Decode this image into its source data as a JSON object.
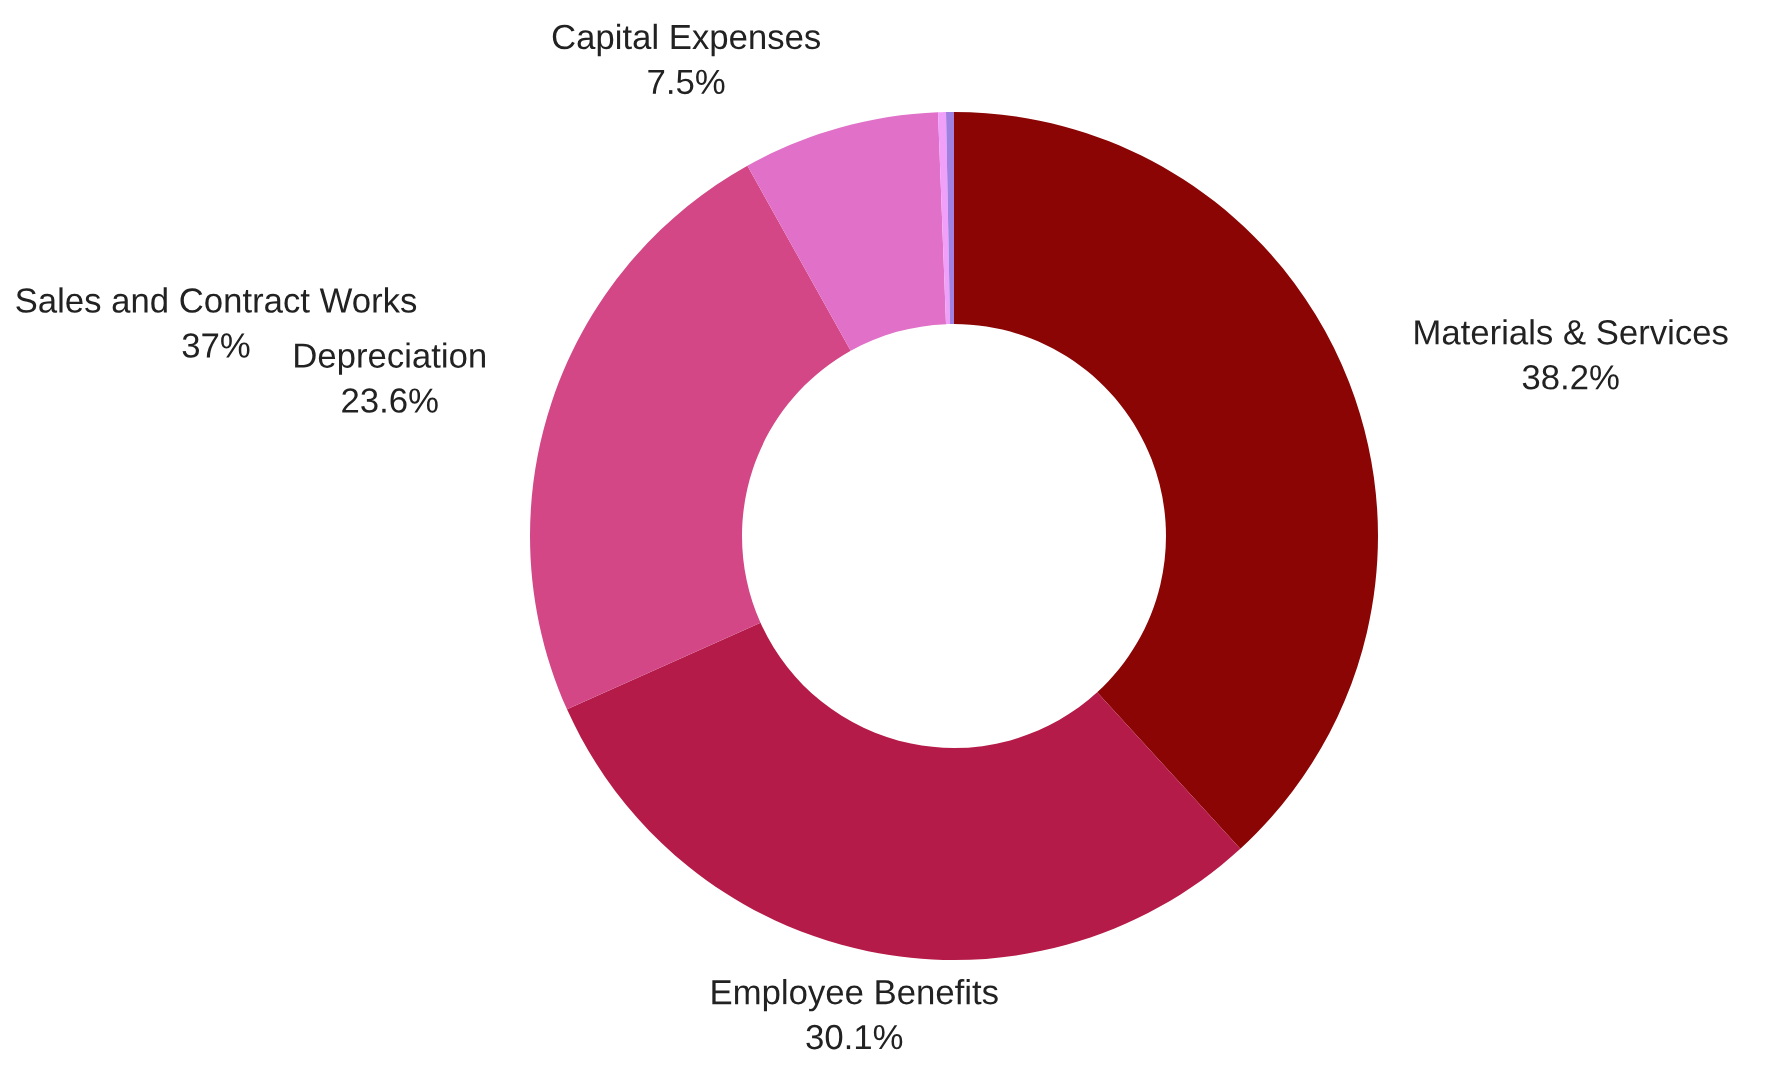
{
  "chart_data": {
    "type": "donut",
    "categories": [
      "Materials & Services",
      "Employee Benefits",
      "Depreciation",
      "Capital Expenses",
      null,
      null
    ],
    "values": [
      38.2,
      30.1,
      23.6,
      7.5,
      0.3,
      0.3
    ],
    "value_labels": [
      "38.2%",
      "30.1%",
      "23.6%",
      "7.5%",
      null,
      null
    ],
    "colors": [
      "#8b0505",
      "#b51b48",
      "#d34787",
      "#e070c8",
      "#f0a0f8",
      "#a080e0"
    ],
    "annotations": [
      "Sales and Contract Works\n37%"
    ]
  }
}
